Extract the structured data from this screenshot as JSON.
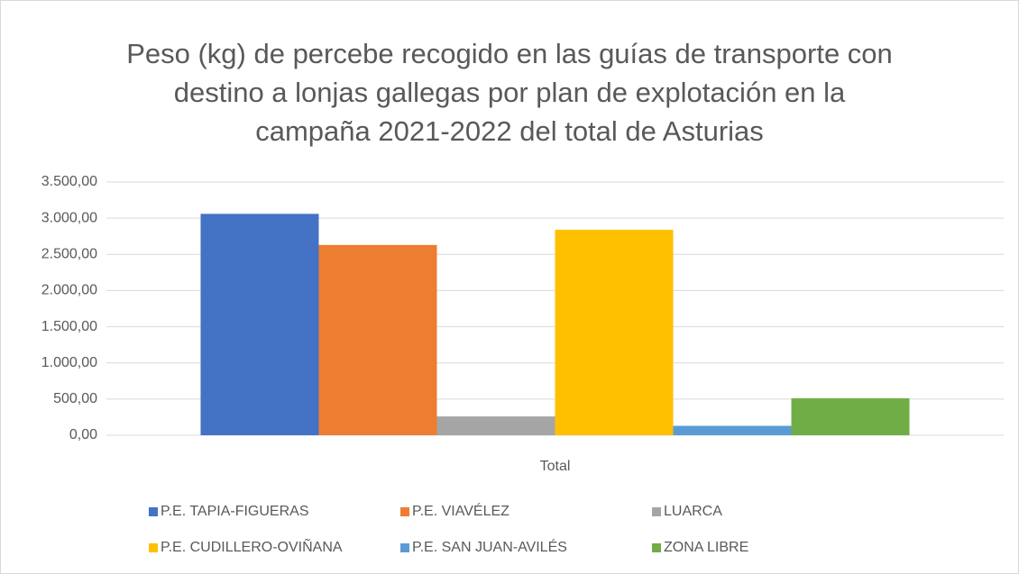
{
  "chart_data": {
    "type": "bar",
    "title": "Peso (kg) de percebe recogido en las guías de transporte con destino a lonjas gallegas por plan de explotación en la campaña 2021-2022 del total de Asturias",
    "categories": [
      "Total"
    ],
    "series": [
      {
        "name": "P.E. TAPIA-FIGUERAS",
        "color": "#4472c4",
        "values": [
          3060
        ]
      },
      {
        "name": "P.E. VIAVÉLEZ",
        "color": "#ed7d31",
        "values": [
          2630
        ]
      },
      {
        "name": "LUARCA",
        "color": "#a5a5a5",
        "values": [
          260
        ]
      },
      {
        "name": "P.E. CUDILLERO-OVIÑANA",
        "color": "#ffc000",
        "values": [
          2840
        ]
      },
      {
        "name": "P.E. SAN JUAN-AVILÉS",
        "color": "#5b9bd5",
        "values": [
          130
        ]
      },
      {
        "name": "ZONA LIBRE",
        "color": "#70ad47",
        "values": [
          510
        ]
      }
    ],
    "ylim": [
      0,
      3500
    ],
    "yticks": [
      {
        "value": 0,
        "label": "0,00"
      },
      {
        "value": 500,
        "label": "500,00"
      },
      {
        "value": 1000,
        "label": "1.000,00"
      },
      {
        "value": 1500,
        "label": "1.500,00"
      },
      {
        "value": 2000,
        "label": "2.000,00"
      },
      {
        "value": 2500,
        "label": "2.500,00"
      },
      {
        "value": 3000,
        "label": "3.000,00"
      },
      {
        "value": 3500,
        "label": "3.500,00"
      }
    ],
    "grid": true
  }
}
